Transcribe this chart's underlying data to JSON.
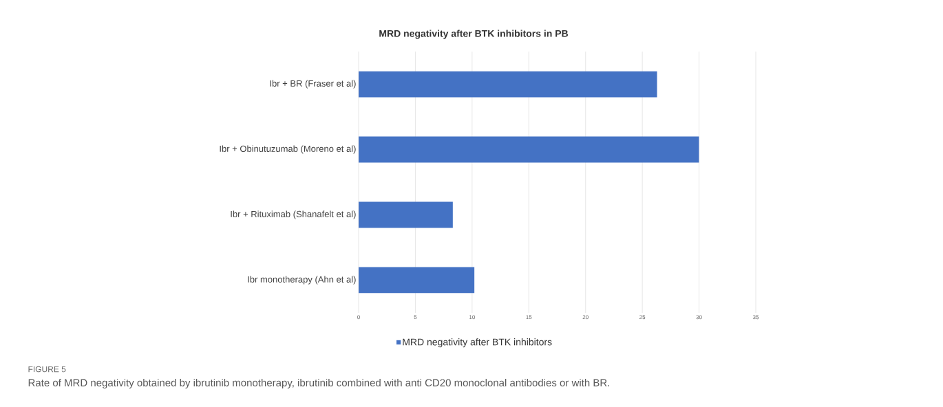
{
  "chart_data": {
    "type": "bar",
    "orientation": "horizontal",
    "title": "MRD negativity after BTK inhibitors in PB",
    "categories": [
      "Ibr + BR (Fraser et al)",
      "Ibr + Obinutuzumab (Moreno et al)",
      "Ibr + Rituximab (Shanafelt et al)",
      "Ibr monotherapy (Ahn et al)"
    ],
    "series": [
      {
        "name": "MRD negativity after BTK inhibitors",
        "color": "#4472c4",
        "values": [
          26.3,
          30,
          8.3,
          10.2
        ]
      }
    ],
    "xlim": [
      0,
      35
    ],
    "xticks": [
      0,
      5,
      10,
      15,
      20,
      25,
      30,
      35
    ],
    "grid": "x",
    "legend": "bottom",
    "annotations": [
      "FIGURE 5",
      "Rate of MRD negativity obtained by ibrutinib monotherapy, ibrutinib combined with anti CD20 monoclonal antibodies or with BR."
    ]
  }
}
